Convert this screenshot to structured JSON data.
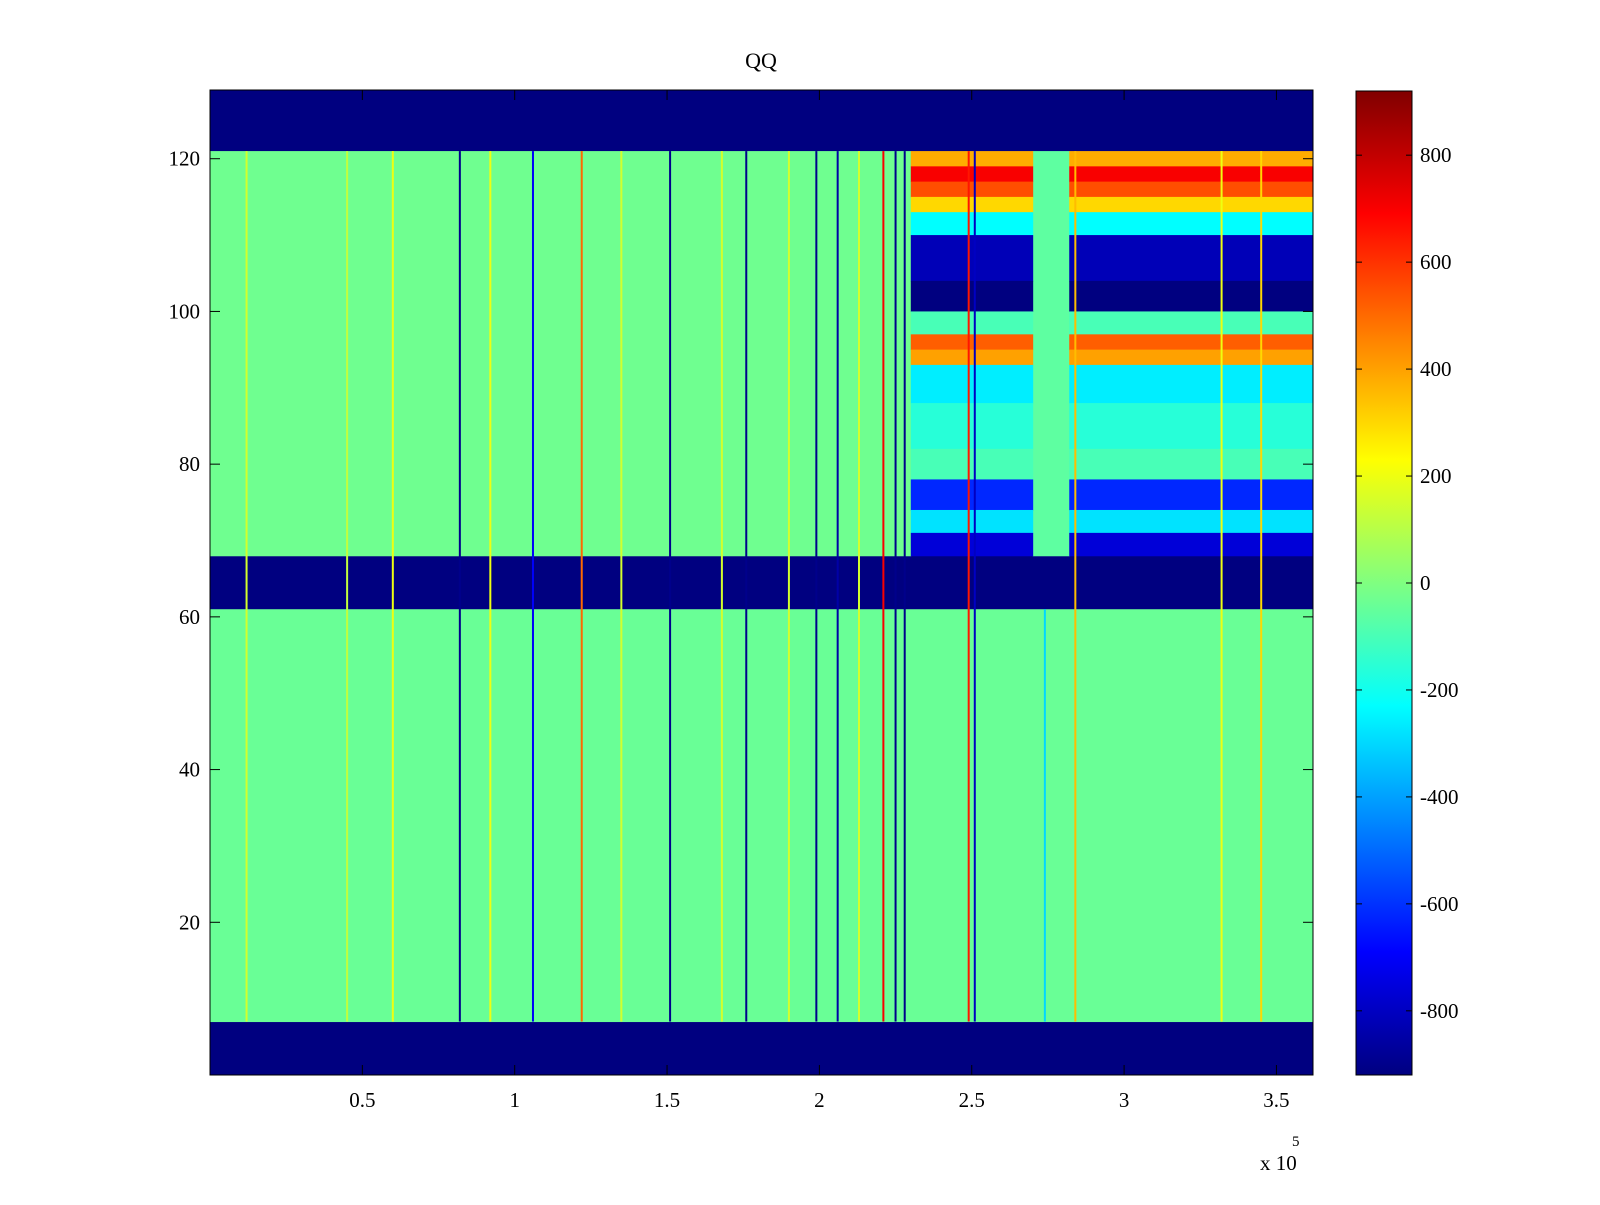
{
  "chart_data": {
    "type": "heatmap",
    "title": "QQ",
    "xlabel": "",
    "ylabel": "",
    "x_exponent_label": "x 10",
    "x_exponent_power": "5",
    "xlim": [
      0,
      3.62
    ],
    "ylim": [
      0,
      129
    ],
    "x_ticks": [
      0.5,
      1,
      1.5,
      2,
      2.5,
      3,
      3.5
    ],
    "x_tick_labels": [
      "0.5",
      "1",
      "1.5",
      "2",
      "2.5",
      "3",
      "3.5"
    ],
    "y_ticks": [
      20,
      40,
      60,
      80,
      100,
      120
    ],
    "y_tick_labels": [
      "20",
      "40",
      "60",
      "80",
      "100",
      "120"
    ],
    "colormap": "jet",
    "clim": [
      -920,
      920
    ],
    "colorbar_ticks": [
      800,
      600,
      400,
      200,
      0,
      -200,
      -400,
      -600,
      -800
    ],
    "colorbar_tick_labels": [
      "800",
      "600",
      "400",
      "200",
      "0",
      "-200",
      "-400",
      "-600",
      "-800"
    ],
    "colorbar_position": "right",
    "grid": false,
    "regions": [
      {
        "x": [
          0,
          3.62
        ],
        "y": [
          0,
          7
        ],
        "value": -920
      },
      {
        "x": [
          0,
          3.62
        ],
        "y": [
          61,
          68
        ],
        "value": -920
      },
      {
        "x": [
          0,
          3.62
        ],
        "y": [
          121,
          129
        ],
        "value": -920
      },
      {
        "x": [
          0,
          3.62
        ],
        "y": [
          7,
          61
        ],
        "value": -40
      },
      {
        "x": [
          0,
          2.3
        ],
        "y": [
          68,
          121
        ],
        "value": -30
      },
      {
        "x": [
          2.7,
          2.82
        ],
        "y": [
          68,
          121
        ],
        "value": -60
      },
      {
        "x": [
          2.3,
          2.7
        ],
        "y": [
          119,
          121
        ],
        "value": 380
      },
      {
        "x": [
          2.3,
          2.7
        ],
        "y": [
          117,
          119
        ],
        "value": 700
      },
      {
        "x": [
          2.3,
          2.7
        ],
        "y": [
          115,
          117
        ],
        "value": 550
      },
      {
        "x": [
          2.3,
          2.7
        ],
        "y": [
          113,
          115
        ],
        "value": 300
      },
      {
        "x": [
          2.3,
          2.7
        ],
        "y": [
          110,
          113
        ],
        "value": -230
      },
      {
        "x": [
          2.3,
          2.7
        ],
        "y": [
          104,
          110
        ],
        "value": -820
      },
      {
        "x": [
          2.3,
          2.7
        ],
        "y": [
          100,
          104
        ],
        "value": -920
      },
      {
        "x": [
          2.3,
          2.7
        ],
        "y": [
          97,
          100
        ],
        "value": -100
      },
      {
        "x": [
          2.3,
          2.7
        ],
        "y": [
          95,
          97
        ],
        "value": 520
      },
      {
        "x": [
          2.3,
          2.7
        ],
        "y": [
          93,
          95
        ],
        "value": 400
      },
      {
        "x": [
          2.3,
          2.7
        ],
        "y": [
          88,
          93
        ],
        "value": -260
      },
      {
        "x": [
          2.3,
          2.7
        ],
        "y": [
          82,
          88
        ],
        "value": -160
      },
      {
        "x": [
          2.3,
          2.7
        ],
        "y": [
          78,
          82
        ],
        "value": -100
      },
      {
        "x": [
          2.3,
          2.7
        ],
        "y": [
          74,
          78
        ],
        "value": -620
      },
      {
        "x": [
          2.3,
          2.7
        ],
        "y": [
          71,
          74
        ],
        "value": -280
      },
      {
        "x": [
          2.3,
          2.7
        ],
        "y": [
          68,
          71
        ],
        "value": -760
      },
      {
        "x": [
          2.82,
          3.62
        ],
        "y": [
          119,
          121
        ],
        "value": 380
      },
      {
        "x": [
          2.82,
          3.62
        ],
        "y": [
          117,
          119
        ],
        "value": 700
      },
      {
        "x": [
          2.82,
          3.62
        ],
        "y": [
          115,
          117
        ],
        "value": 550
      },
      {
        "x": [
          2.82,
          3.62
        ],
        "y": [
          113,
          115
        ],
        "value": 300
      },
      {
        "x": [
          2.82,
          3.62
        ],
        "y": [
          110,
          113
        ],
        "value": -230
      },
      {
        "x": [
          2.82,
          3.62
        ],
        "y": [
          104,
          110
        ],
        "value": -820
      },
      {
        "x": [
          2.82,
          3.62
        ],
        "y": [
          100,
          104
        ],
        "value": -920
      },
      {
        "x": [
          2.82,
          3.62
        ],
        "y": [
          97,
          100
        ],
        "value": -100
      },
      {
        "x": [
          2.82,
          3.62
        ],
        "y": [
          95,
          97
        ],
        "value": 520
      },
      {
        "x": [
          2.82,
          3.62
        ],
        "y": [
          93,
          95
        ],
        "value": 400
      },
      {
        "x": [
          2.82,
          3.62
        ],
        "y": [
          88,
          93
        ],
        "value": -260
      },
      {
        "x": [
          2.82,
          3.62
        ],
        "y": [
          82,
          88
        ],
        "value": -160
      },
      {
        "x": [
          2.82,
          3.62
        ],
        "y": [
          78,
          82
        ],
        "value": -100
      },
      {
        "x": [
          2.82,
          3.62
        ],
        "y": [
          74,
          78
        ],
        "value": -620
      },
      {
        "x": [
          2.82,
          3.62
        ],
        "y": [
          71,
          74
        ],
        "value": -280
      },
      {
        "x": [
          2.82,
          3.62
        ],
        "y": [
          68,
          71
        ],
        "value": -760
      }
    ],
    "vertical_streaks": [
      {
        "x": 0.12,
        "y": [
          7,
          121
        ],
        "value": 150
      },
      {
        "x": 0.45,
        "y": [
          7,
          121
        ],
        "value": 120
      },
      {
        "x": 0.6,
        "y": [
          7,
          121
        ],
        "value": 200
      },
      {
        "x": 0.82,
        "y": [
          7,
          121
        ],
        "value": -900
      },
      {
        "x": 0.92,
        "y": [
          7,
          121
        ],
        "value": 200
      },
      {
        "x": 1.06,
        "y": [
          7,
          121
        ],
        "value": -700
      },
      {
        "x": 1.22,
        "y": [
          7,
          121
        ],
        "value": 500
      },
      {
        "x": 1.35,
        "y": [
          7,
          121
        ],
        "value": 150
      },
      {
        "x": 1.51,
        "y": [
          7,
          121
        ],
        "value": -900
      },
      {
        "x": 1.68,
        "y": [
          7,
          121
        ],
        "value": 150
      },
      {
        "x": 1.76,
        "y": [
          7,
          121
        ],
        "value": -900
      },
      {
        "x": 1.9,
        "y": [
          7,
          121
        ],
        "value": 150
      },
      {
        "x": 1.99,
        "y": [
          7,
          121
        ],
        "value": -900
      },
      {
        "x": 2.06,
        "y": [
          7,
          121
        ],
        "value": -850
      },
      {
        "x": 2.13,
        "y": [
          7,
          121
        ],
        "value": 150
      },
      {
        "x": 2.21,
        "y": [
          7,
          121
        ],
        "value": 700
      },
      {
        "x": 2.25,
        "y": [
          7,
          121
        ],
        "value": -900
      },
      {
        "x": 2.28,
        "y": [
          7,
          121
        ],
        "value": -900
      },
      {
        "x": 2.49,
        "y": [
          7,
          121
        ],
        "value": 650
      },
      {
        "x": 2.51,
        "y": [
          7,
          121
        ],
        "value": -800
      },
      {
        "x": 2.74,
        "y": [
          7,
          61
        ],
        "value": -300
      },
      {
        "x": 2.84,
        "y": [
          7,
          121
        ],
        "value": 350
      },
      {
        "x": 3.32,
        "y": [
          7,
          121
        ],
        "value": 200
      },
      {
        "x": 3.45,
        "y": [
          7,
          121
        ],
        "value": 300
      }
    ]
  }
}
